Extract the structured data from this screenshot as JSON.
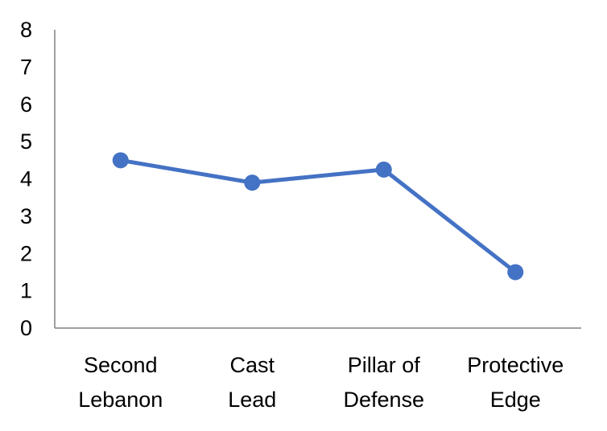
{
  "chart_data": {
    "type": "line",
    "categories": [
      [
        "Second",
        "Lebanon"
      ],
      [
        "Cast",
        "Lead"
      ],
      [
        "Pillar of",
        "Defense"
      ],
      [
        "Protective",
        "Edge"
      ]
    ],
    "series": [
      {
        "name": "",
        "color": "#4472C4",
        "values": [
          4.5,
          3.9,
          4.25,
          1.5
        ]
      }
    ],
    "title": "",
    "xlabel": "",
    "ylabel": "",
    "ylim": [
      0,
      8
    ],
    "yticks": [
      "0",
      "1",
      "2",
      "3",
      "4",
      "5",
      "6",
      "7",
      "8"
    ],
    "grid": false,
    "legend": "none",
    "markers": "circle"
  }
}
